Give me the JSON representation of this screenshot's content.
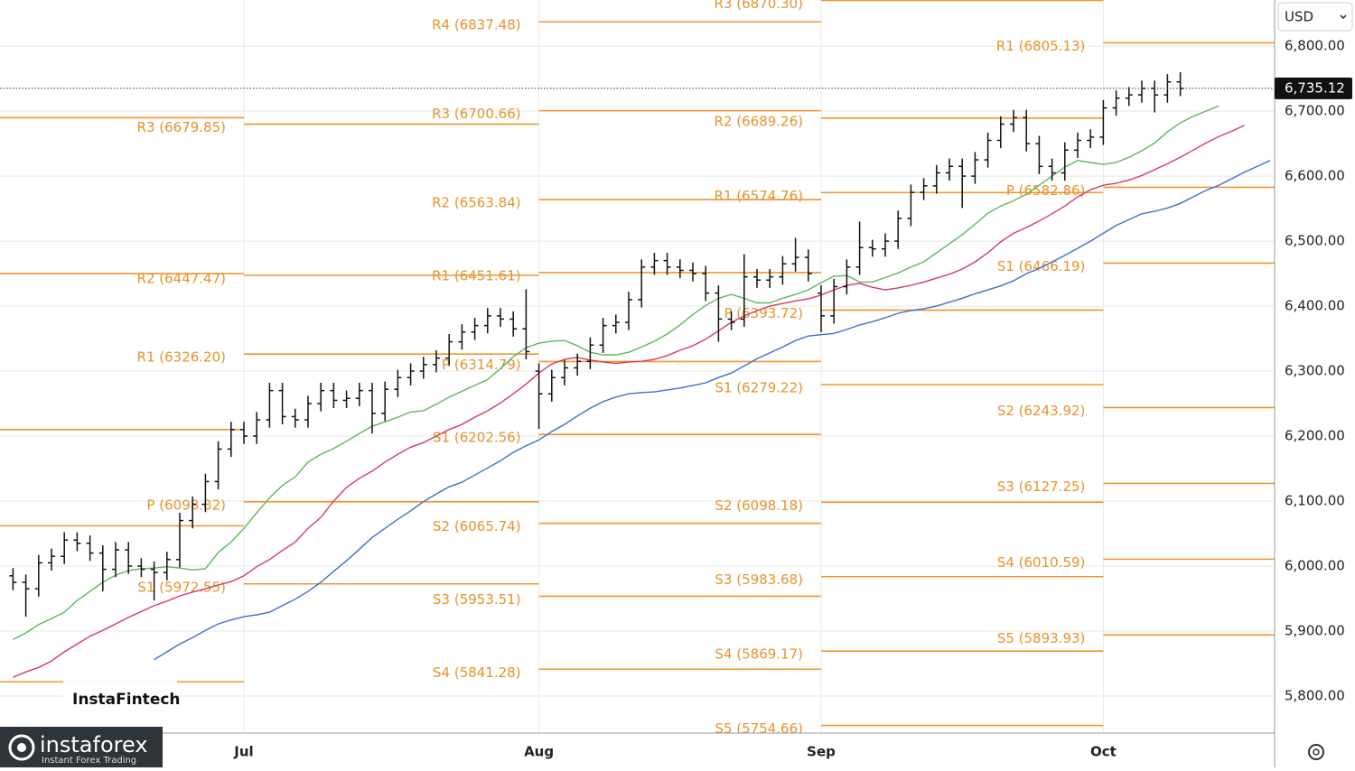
{
  "chart_data": {
    "type": "ohlc",
    "ylim": [
      5743,
      6871
    ],
    "yticks": [
      {
        "value": 5800,
        "label": "5,800.00"
      },
      {
        "value": 5900,
        "label": "5,900.00"
      },
      {
        "value": 6000,
        "label": "6,000.00"
      },
      {
        "value": 6100,
        "label": "6,100.00"
      },
      {
        "value": 6200,
        "label": "6,200.00"
      },
      {
        "value": 6300,
        "label": "6,300.00"
      },
      {
        "value": 6400,
        "label": "6,400.00"
      },
      {
        "value": 6500,
        "label": "6,500.00"
      },
      {
        "value": 6600,
        "label": "6,600.00"
      },
      {
        "value": 6700,
        "label": "6,700.00"
      },
      {
        "value": 6800,
        "label": "6,800.00"
      }
    ],
    "grid": true,
    "bar_color": "#111111",
    "categories": [
      null,
      null,
      null,
      null,
      null,
      null,
      null,
      null,
      null,
      null,
      null,
      null,
      null,
      null,
      null,
      null,
      null,
      null,
      "Jul",
      null,
      null,
      null,
      null,
      null,
      null,
      null,
      null,
      null,
      null,
      null,
      null,
      null,
      null,
      null,
      null,
      null,
      null,
      null,
      null,
      null,
      null,
      "Aug",
      null,
      null,
      null,
      null,
      null,
      null,
      null,
      null,
      null,
      null,
      null,
      null,
      null,
      null,
      null,
      null,
      null,
      null,
      null,
      null,
      null,
      "Sep",
      null,
      null,
      null,
      null,
      null,
      null,
      null,
      null,
      null,
      null,
      null,
      null,
      null,
      null,
      null,
      null,
      null,
      null,
      null,
      null,
      null,
      "Oct",
      null,
      null,
      null,
      null,
      null,
      null,
      null,
      null,
      null,
      null,
      null,
      null,
      null
    ],
    "open": [
      5985,
      5975,
      5965,
      6005,
      6015,
      6040,
      6035,
      6020,
      5995,
      6025,
      6000,
      5995,
      5990,
      6010,
      6070,
      6095,
      6130,
      6180,
      6210,
      6200,
      6225,
      6270,
      6230,
      6225,
      6250,
      6270,
      6255,
      6258,
      6270,
      6235,
      6272,
      6290,
      6300,
      6310,
      6320,
      6345,
      6360,
      6370,
      6385,
      6380,
      6365,
      6300,
      6265,
      6290,
      6305,
      6315,
      6340,
      6370,
      6375,
      6410,
      6460,
      6470,
      6460,
      6455,
      6450,
      6420,
      6380,
      6380,
      6445,
      6440,
      6445,
      6465,
      6475,
      6420,
      6385,
      6430,
      6460,
      6490,
      6488,
      6500,
      6535,
      6575,
      6585,
      6605,
      6615,
      6600,
      6625,
      6655,
      6680,
      6690,
      6650,
      6615,
      6605,
      6640,
      6655,
      6660,
      6705,
      6720,
      6725,
      6735,
      6725,
      6745,
      null,
      null,
      null,
      null,
      null,
      null,
      null
    ],
    "high": [
      5997,
      5987,
      6017,
      6027,
      6052,
      6052,
      6047,
      6032,
      6037,
      6037,
      6012,
      6007,
      6022,
      6082,
      6107,
      6142,
      6192,
      6222,
      6222,
      6237,
      6282,
      6282,
      6242,
      6262,
      6282,
      6282,
      6270,
      6282,
      6282,
      6284,
      6302,
      6312,
      6322,
      6332,
      6357,
      6372,
      6382,
      6397,
      6397,
      6392,
      6426,
      6312,
      6302,
      6317,
      6327,
      6352,
      6382,
      6387,
      6422,
      6472,
      6482,
      6482,
      6472,
      6467,
      6462,
      6432,
      6392,
      6480,
      6457,
      6457,
      6477,
      6505,
      6487,
      6432,
      6442,
      6472,
      6530,
      6502,
      6512,
      6547,
      6587,
      6597,
      6617,
      6627,
      6627,
      6637,
      6667,
      6692,
      6702,
      6702,
      6662,
      6627,
      6652,
      6667,
      6672,
      6717,
      6732,
      6737,
      6747,
      6747,
      6757,
      6760,
      null,
      null,
      null,
      null,
      null,
      null,
      null
    ],
    "low": [
      5963,
      5922,
      5953,
      5993,
      6003,
      6023,
      6008,
      5961,
      5983,
      5988,
      5983,
      5947,
      5978,
      5998,
      6058,
      6083,
      6118,
      6168,
      6188,
      6188,
      6213,
      6218,
      6213,
      6213,
      6238,
      6243,
      6243,
      6246,
      6204,
      6223,
      6260,
      6278,
      6288,
      6298,
      6308,
      6333,
      6348,
      6358,
      6368,
      6353,
      6318,
      6211,
      6253,
      6278,
      6293,
      6303,
      6328,
      6358,
      6363,
      6398,
      6448,
      6448,
      6443,
      6438,
      6408,
      6345,
      6363,
      6368,
      6428,
      6428,
      6433,
      6453,
      6438,
      6360,
      6373,
      6418,
      6448,
      6476,
      6476,
      6488,
      6523,
      6563,
      6573,
      6593,
      6551,
      6588,
      6613,
      6643,
      6668,
      6638,
      6603,
      6593,
      6593,
      6628,
      6643,
      6648,
      6693,
      6708,
      6713,
      6698,
      6713,
      6723,
      null,
      null,
      null,
      null,
      null,
      null,
      null
    ],
    "close": [
      5975,
      5965,
      6005,
      6015,
      6040,
      6035,
      6020,
      5995,
      6025,
      6000,
      5995,
      5990,
      6010,
      6070,
      6095,
      6130,
      6180,
      6210,
      6200,
      6225,
      6270,
      6230,
      6225,
      6250,
      6270,
      6255,
      6258,
      6270,
      6235,
      6272,
      6290,
      6300,
      6310,
      6320,
      6345,
      6360,
      6370,
      6385,
      6380,
      6365,
      6330,
      6265,
      6290,
      6305,
      6315,
      6340,
      6370,
      6375,
      6410,
      6460,
      6470,
      6460,
      6455,
      6450,
      6420,
      6380,
      6375,
      6445,
      6440,
      6445,
      6465,
      6475,
      6450,
      6385,
      6430,
      6460,
      6490,
      6488,
      6500,
      6535,
      6575,
      6585,
      6605,
      6615,
      6600,
      6625,
      6655,
      6680,
      6690,
      6650,
      6615,
      6605,
      6640,
      6655,
      6660,
      6705,
      6720,
      6725,
      6735,
      6725,
      6745,
      6735,
      null,
      null,
      null,
      null,
      null,
      null,
      null
    ],
    "lines": [
      {
        "color": "#5cb85c",
        "values": [
          5887,
          5897,
          5910,
          5919,
          5929,
          5947,
          5961,
          5975,
          5986,
          5993,
          5996,
          5997,
          5999,
          5997,
          5994,
          5996,
          6021,
          6037,
          6058,
          6082,
          6105,
          6124,
          6137,
          6160,
          6172,
          6181,
          6192,
          6204,
          6215,
          6222,
          6229,
          6237,
          6239,
          6249,
          6260,
          6269,
          6278,
          6287,
          6304,
          6322,
          6336,
          6343,
          6346,
          6347,
          6339,
          6329,
          6325,
          6325,
          6329,
          6337,
          6346,
          6357,
          6371,
          6387,
          6401,
          6412,
          6418,
          6412,
          6405,
          6405,
          6412,
          6418,
          6425,
          6436,
          6446,
          6447,
          6437,
          6437,
          6444,
          6451,
          6460,
          6468,
          6482,
          6496,
          6510,
          6526,
          6543,
          6554,
          6562,
          6572,
          6586,
          6600,
          6614,
          6624,
          6621,
          6618,
          6621,
          6629,
          6639,
          6651,
          6668,
          6682,
          6692,
          6700,
          6708,
          null,
          null,
          null,
          null
        ]
      },
      {
        "color": "#d63a5e",
        "values": [
          5829,
          5837,
          5844,
          5854,
          5868,
          5880,
          5892,
          5901,
          5911,
          5921,
          5930,
          5939,
          5946,
          5954,
          5960,
          5965,
          5971,
          5976,
          5985,
          5999,
          6010,
          6024,
          6037,
          6058,
          6075,
          6100,
          6121,
          6135,
          6146,
          6160,
          6172,
          6183,
          6190,
          6200,
          6210,
          6218,
          6229,
          6239,
          6251,
          6265,
          6280,
          6297,
          6311,
          6318,
          6321,
          6317,
          6314,
          6312,
          6314,
          6315,
          6318,
          6324,
          6332,
          6339,
          6349,
          6362,
          6375,
          6385,
          6393,
          6400,
          6404,
          6408,
          6411,
          6417,
          6425,
          6432,
          6435,
          6429,
          6425,
          6428,
          6432,
          6437,
          6443,
          6449,
          6457,
          6468,
          6482,
          6499,
          6512,
          6521,
          6531,
          6542,
          6554,
          6568,
          6579,
          6586,
          6589,
          6594,
          6601,
          6610,
          6619,
          6629,
          6640,
          6651,
          6661,
          6669,
          6678,
          null,
          null
        ]
      },
      {
        "color": "#3b6fd4",
        "values": [
          null,
          null,
          null,
          null,
          null,
          null,
          null,
          null,
          null,
          null,
          null,
          5856,
          5868,
          5880,
          5890,
          5901,
          5911,
          5917,
          5922,
          5925,
          5929,
          5939,
          5949,
          5961,
          5975,
          5992,
          6008,
          6026,
          6044,
          6058,
          6072,
          6085,
          6099,
          6111,
          6122,
          6129,
          6140,
          6151,
          6162,
          6175,
          6185,
          6194,
          6207,
          6218,
          6231,
          6243,
          6253,
          6260,
          6265,
          6267,
          6268,
          6271,
          6274,
          6278,
          6282,
          6290,
          6297,
          6308,
          6319,
          6328,
          6337,
          6347,
          6354,
          6356,
          6358,
          6364,
          6371,
          6376,
          6382,
          6389,
          6393,
          6396,
          6400,
          6406,
          6412,
          6419,
          6425,
          6431,
          6439,
          6450,
          6458,
          6468,
          6478,
          6489,
          6500,
          6512,
          6524,
          6533,
          6542,
          6546,
          6551,
          6558,
          6568,
          6578,
          6586,
          6596,
          6606,
          6615,
          6624
        ]
      }
    ],
    "pivot_color": "#f0962b",
    "pivots": [
      {
        "levels": [
          {
            "value": 6690
          },
          {
            "value": 6450
          },
          {
            "value": 6210
          },
          {
            "value": 6062
          },
          {
            "value": 5822
          }
        ]
      },
      {
        "levels": [
          {
            "label": "R3 (6679.85)",
            "value": 6679.85
          },
          {
            "label": "R2 (6447.47)",
            "value": 6447.47
          },
          {
            "label": "R1 (6326.20)",
            "value": 6326.2
          },
          {
            "label": "P (6098.82)",
            "value": 6098.82
          },
          {
            "label": "S1 (5972.55)",
            "value": 5972.55
          }
        ]
      },
      {
        "levels": [
          {
            "label": "R4 (6837.48)",
            "value": 6837.48
          },
          {
            "label": "R3 (6700.66)",
            "value": 6700.66
          },
          {
            "label": "R2 (6563.84)",
            "value": 6563.84
          },
          {
            "label": "R1 (6451.61)",
            "value": 6451.61
          },
          {
            "label": "P (6314.79)",
            "value": 6314.79
          },
          {
            "label": "S1 (6202.56)",
            "value": 6202.56
          },
          {
            "label": "S2 (6065.74)",
            "value": 6065.74
          },
          {
            "label": "S3 (5953.51)",
            "value": 5953.51
          },
          {
            "label": "S4 (5841.28)",
            "value": 5841.28
          }
        ]
      },
      {
        "levels": [
          {
            "label": "R3 (6870.30)",
            "value": 6870.3
          },
          {
            "label": "R2 (6689.26)",
            "value": 6689.26
          },
          {
            "label": "R1 (6574.76)",
            "value": 6574.76
          },
          {
            "label": "P (6393.72)",
            "value": 6393.72
          },
          {
            "label": "S1 (6279.22)",
            "value": 6279.22
          },
          {
            "label": "S2 (6098.18)",
            "value": 6098.18
          },
          {
            "label": "S3 (5983.68)",
            "value": 5983.68
          },
          {
            "label": "S4 (5869.17)",
            "value": 5869.17
          },
          {
            "label": "S5 (5754.66)",
            "value": 5754.66
          }
        ]
      },
      {
        "levels": [
          {
            "label": "R1 (6805.13)",
            "value": 6805.13
          },
          {
            "label": "P (6582.86)",
            "value": 6582.86
          },
          {
            "label": "S1 (6466.19)",
            "value": 6466.19
          },
          {
            "label": "S2 (6243.92)",
            "value": 6243.92
          },
          {
            "label": "S3 (6127.25)",
            "value": 6127.25
          },
          {
            "label": "S4 (6010.59)",
            "value": 6010.59
          },
          {
            "label": "S5 (5893.93)",
            "value": 5893.93
          }
        ]
      }
    ],
    "last_price": {
      "value": 6735.12,
      "label": "6,735.12"
    }
  },
  "ui": {
    "currency": "USD",
    "watermark": "InstaFintech",
    "brand": "instaforex",
    "brand_tagline": "Instant Forex Trading"
  }
}
